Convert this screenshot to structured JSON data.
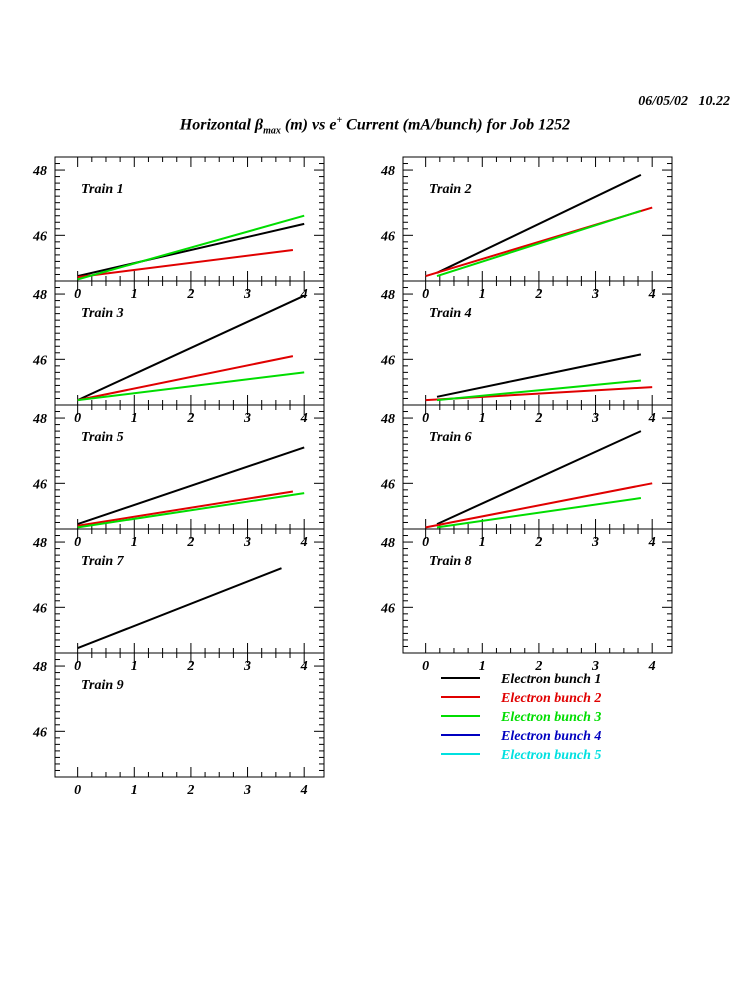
{
  "header": {
    "date": "06/05/02",
    "time": "10.22",
    "title_pre": "Horizontal β",
    "title_sub": "max",
    "title_mid": " (m) vs e",
    "title_sup": "+",
    "title_post": " Current (mA/bunch) for Job 1252"
  },
  "legend": [
    {
      "label": "Electron bunch 1",
      "color": "#000000"
    },
    {
      "label": "Electron bunch 2",
      "color": "#e00000"
    },
    {
      "label": "Electron bunch 3",
      "color": "#00dd00"
    },
    {
      "label": "Electron bunch 4",
      "color": "#0000c0"
    },
    {
      "label": "Electron bunch 5",
      "color": "#00e0e0"
    }
  ],
  "chart_data": [
    {
      "type": "line",
      "title": "Train 1",
      "xlim": [
        -0.4,
        4.35
      ],
      "ylim": [
        44.6,
        48.4
      ],
      "xticks": [
        0,
        1,
        2,
        3,
        4
      ],
      "yticks": [
        46,
        48
      ],
      "series": [
        {
          "name": "Electron bunch 1",
          "x": [
            0,
            4
          ],
          "y": [
            44.75,
            46.35
          ]
        },
        {
          "name": "Electron bunch 2",
          "x": [
            0,
            3.8
          ],
          "y": [
            44.72,
            45.55
          ]
        },
        {
          "name": "Electron bunch 3",
          "x": [
            0,
            4
          ],
          "y": [
            44.65,
            46.6
          ]
        }
      ]
    },
    {
      "type": "line",
      "title": "Train 2",
      "xlim": [
        -0.4,
        4.35
      ],
      "ylim": [
        44.6,
        48.4
      ],
      "xticks": [
        0,
        1,
        2,
        3,
        4
      ],
      "yticks": [
        46,
        48
      ],
      "series": [
        {
          "name": "Electron bunch 1",
          "x": [
            0.2,
            3.8
          ],
          "y": [
            44.85,
            47.85
          ]
        },
        {
          "name": "Electron bunch 2",
          "x": [
            0,
            4
          ],
          "y": [
            44.75,
            46.85
          ]
        },
        {
          "name": "Electron bunch 3",
          "x": [
            0.2,
            3.8
          ],
          "y": [
            44.75,
            46.75
          ]
        }
      ]
    },
    {
      "type": "line",
      "title": "Train 3",
      "xlim": [
        -0.4,
        4.35
      ],
      "ylim": [
        44.6,
        48.4
      ],
      "xticks": [
        0,
        1,
        2,
        3,
        4
      ],
      "yticks": [
        46,
        48
      ],
      "series": [
        {
          "name": "Electron bunch 1",
          "x": [
            0,
            4
          ],
          "y": [
            44.75,
            47.95
          ]
        },
        {
          "name": "Electron bunch 2",
          "x": [
            0,
            3.8
          ],
          "y": [
            44.75,
            46.1
          ]
        },
        {
          "name": "Electron bunch 3",
          "x": [
            0,
            4
          ],
          "y": [
            44.75,
            45.6
          ]
        }
      ]
    },
    {
      "type": "line",
      "title": "Train 4",
      "xlim": [
        -0.4,
        4.35
      ],
      "ylim": [
        44.6,
        48.4
      ],
      "xticks": [
        0,
        1,
        2,
        3,
        4
      ],
      "yticks": [
        46,
        48
      ],
      "series": [
        {
          "name": "Electron bunch 1",
          "x": [
            0.2,
            3.8
          ],
          "y": [
            44.85,
            46.15
          ]
        },
        {
          "name": "Electron bunch 2",
          "x": [
            0,
            4
          ],
          "y": [
            44.75,
            45.15
          ]
        },
        {
          "name": "Electron bunch 3",
          "x": [
            0.2,
            3.8
          ],
          "y": [
            44.75,
            45.35
          ]
        }
      ]
    },
    {
      "type": "line",
      "title": "Train 5",
      "xlim": [
        -0.4,
        4.35
      ],
      "ylim": [
        44.6,
        48.4
      ],
      "xticks": [
        0,
        1,
        2,
        3,
        4
      ],
      "yticks": [
        46,
        48
      ],
      "series": [
        {
          "name": "Electron bunch 1",
          "x": [
            0,
            4
          ],
          "y": [
            44.75,
            47.1
          ]
        },
        {
          "name": "Electron bunch 2",
          "x": [
            0,
            3.8
          ],
          "y": [
            44.7,
            45.75
          ]
        },
        {
          "name": "Electron bunch 3",
          "x": [
            0,
            4
          ],
          "y": [
            44.65,
            45.7
          ]
        }
      ]
    },
    {
      "type": "line",
      "title": "Train 6",
      "xlim": [
        -0.4,
        4.35
      ],
      "ylim": [
        44.6,
        48.4
      ],
      "xticks": [
        0,
        1,
        2,
        3,
        4
      ],
      "yticks": [
        46,
        48
      ],
      "series": [
        {
          "name": "Electron bunch 1",
          "x": [
            0.2,
            3.8
          ],
          "y": [
            44.75,
            47.6
          ]
        },
        {
          "name": "Electron bunch 2",
          "x": [
            0,
            4
          ],
          "y": [
            44.65,
            46.0
          ]
        },
        {
          "name": "Electron bunch 3",
          "x": [
            0.2,
            3.8
          ],
          "y": [
            44.65,
            45.55
          ]
        }
      ]
    },
    {
      "type": "line",
      "title": "Train 7",
      "xlim": [
        -0.4,
        4.35
      ],
      "ylim": [
        44.6,
        48.4
      ],
      "xticks": [
        0,
        1,
        2,
        3,
        4
      ],
      "yticks": [
        46,
        48
      ],
      "series": [
        {
          "name": "Electron bunch 1",
          "x": [
            0,
            3.6
          ],
          "y": [
            44.75,
            47.2
          ]
        }
      ]
    },
    {
      "type": "line",
      "title": "Train 8",
      "xlim": [
        -0.4,
        4.35
      ],
      "ylim": [
        44.6,
        48.4
      ],
      "xticks": [
        0,
        1,
        2,
        3,
        4
      ],
      "yticks": [
        46,
        48
      ],
      "series": []
    },
    {
      "type": "line",
      "title": "Train 9",
      "xlim": [
        -0.4,
        4.35
      ],
      "ylim": [
        44.6,
        48.4
      ],
      "xticks": [
        0,
        1,
        2,
        3,
        4
      ],
      "yticks": [
        46,
        48
      ],
      "series": []
    }
  ]
}
